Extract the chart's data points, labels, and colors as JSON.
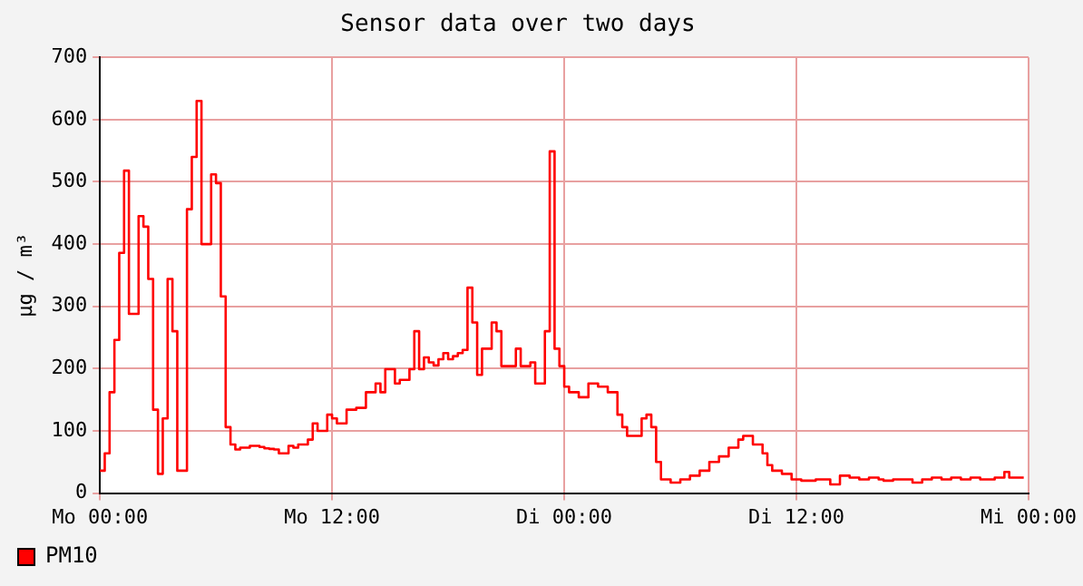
{
  "chart_data": {
    "type": "step",
    "title": "Sensor data over two days",
    "ylabel": "µg / m³",
    "legend": "bottom left",
    "grid": true,
    "marker": "none",
    "line_style": "solid",
    "categories": [
      "Mo 00:00",
      null,
      null,
      null,
      null,
      null,
      null,
      null,
      null,
      null,
      null,
      null,
      null,
      null,
      null,
      null,
      null,
      null,
      null,
      null,
      null,
      null,
      null,
      null,
      null,
      null,
      null,
      null,
      null,
      null,
      null,
      null,
      null,
      null,
      null,
      null,
      null,
      null,
      null,
      null,
      null,
      null,
      null,
      null,
      null,
      null,
      null,
      null,
      "Mo 12:00",
      null,
      null,
      null,
      null,
      null,
      null,
      null,
      null,
      null,
      null,
      null,
      null,
      null,
      null,
      null,
      null,
      null,
      null,
      null,
      null,
      null,
      null,
      null,
      null,
      null,
      null,
      null,
      null,
      null,
      null,
      null,
      null,
      null,
      null,
      null,
      null,
      null,
      null,
      null,
      null,
      null,
      null,
      null,
      null,
      null,
      null,
      null,
      "Di 00:00",
      null,
      null,
      null,
      null,
      null,
      null,
      null,
      null,
      null,
      null,
      null,
      null,
      null,
      null,
      null,
      null,
      null,
      null,
      null,
      null,
      null,
      null,
      null,
      null,
      null,
      null,
      null,
      null,
      null,
      null,
      null,
      null,
      null,
      null,
      null,
      null,
      null,
      null,
      null,
      null,
      null,
      null,
      null,
      null,
      null,
      null,
      null,
      "Di 12:00",
      null,
      null,
      null,
      null,
      null,
      null,
      null,
      null,
      null,
      null,
      null,
      null,
      null,
      null,
      null,
      null,
      null,
      null,
      null,
      null,
      null,
      null,
      null,
      null,
      null,
      null,
      null,
      null,
      null,
      null,
      null,
      null,
      null,
      null,
      null,
      null,
      null,
      null,
      null,
      null,
      null,
      null,
      null,
      null,
      null,
      null,
      null,
      "Mi 00:00"
    ],
    "ylim": [
      0,
      700
    ],
    "yticks": [
      0,
      100,
      200,
      300,
      400,
      500,
      600,
      700
    ],
    "series": [
      {
        "name": "PM10",
        "color": "#ff0000",
        "values": [
          36,
          64,
          162,
          246,
          386,
          518,
          288,
          288,
          445,
          428,
          344,
          134,
          31,
          120,
          344,
          260,
          36,
          36,
          456,
          540,
          630,
          400,
          400,
          512,
          498,
          316,
          106,
          78,
          70,
          73,
          73,
          76,
          76,
          74,
          72,
          71,
          70,
          64,
          64,
          76,
          73,
          78,
          78,
          86,
          112,
          100,
          100,
          126,
          120,
          112,
          112,
          134,
          134,
          137,
          137,
          162,
          162,
          176,
          162,
          199,
          199,
          176,
          182,
          182,
          199,
          260,
          199,
          218,
          210,
          205,
          215,
          225,
          215,
          220,
          225,
          230,
          330,
          274,
          190,
          232,
          232,
          274,
          260,
          204,
          204,
          204,
          232,
          204,
          204,
          210,
          176,
          176,
          260,
          549,
          232,
          204,
          171,
          162,
          162,
          154,
          154,
          176,
          176,
          171,
          171,
          162,
          162,
          126,
          106,
          92,
          92,
          92,
          120,
          126,
          106,
          50,
          22,
          22,
          17,
          17,
          22,
          22,
          28,
          28,
          36,
          36,
          50,
          50,
          59,
          59,
          73,
          73,
          86,
          92,
          92,
          78,
          78,
          64,
          45,
          36,
          36,
          31,
          31,
          22,
          22,
          20,
          20,
          20,
          22,
          22,
          22,
          14,
          14,
          28,
          28,
          25,
          25,
          22,
          22,
          25,
          25,
          22,
          20,
          20,
          22,
          22,
          22,
          22,
          17,
          17,
          22,
          22,
          25,
          25,
          22,
          22,
          25,
          25,
          22,
          22,
          25,
          25,
          22,
          22,
          22,
          25,
          25,
          34,
          25,
          25,
          25,
          25,
          null
        ]
      }
    ]
  }
}
